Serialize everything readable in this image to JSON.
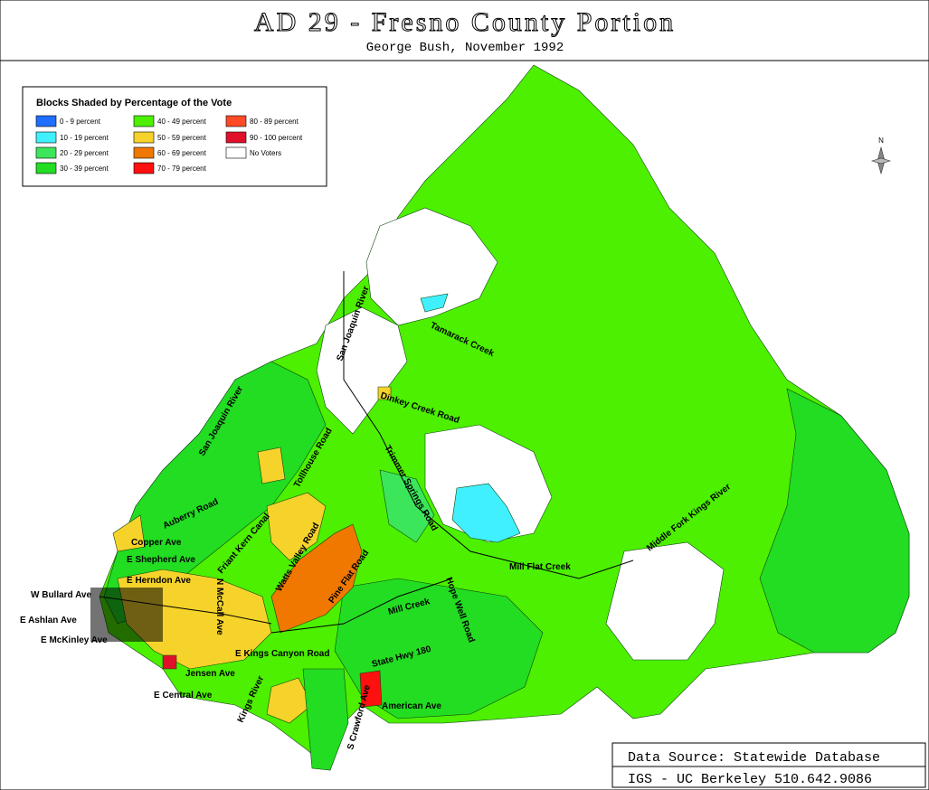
{
  "header": {
    "title": "AD 29 - Fresno County Portion",
    "subtitle": "George Bush, November 1992"
  },
  "legend": {
    "title": "Blocks Shaded by Percentage of the Vote",
    "items": [
      {
        "label": "0 - 9 percent",
        "color": "#1e6eff"
      },
      {
        "label": "10 - 19 percent",
        "color": "#40f0ff"
      },
      {
        "label": "20 - 29 percent",
        "color": "#3ce65a"
      },
      {
        "label": "30 - 39 percent",
        "color": "#22dd22"
      },
      {
        "label": "40 - 49 percent",
        "color": "#4cf000"
      },
      {
        "label": "50 - 59 percent",
        "color": "#f5d32a"
      },
      {
        "label": "60 - 69 percent",
        "color": "#f07800"
      },
      {
        "label": "70 - 79 percent",
        "color": "#ff1010"
      },
      {
        "label": "80 - 89 percent",
        "color": "#ff4a28"
      },
      {
        "label": "90 - 100 percent",
        "color": "#e0102a"
      },
      {
        "label": "No Voters",
        "color": "#ffffff"
      }
    ]
  },
  "map": {
    "north_label": "N",
    "labels": [
      "San Joaquin River",
      "Tamarack Creek",
      "Dinkey Creek Road",
      "San Joaquin River",
      "Tollhouse Road",
      "Trimmer Springs Road",
      "Auberry Road",
      "Copper Ave",
      "E Shepherd Ave",
      "Friant Kern Canal",
      "Watts Valley Road",
      "Pine Flat Road",
      "Mill Creek",
      "Hope Well Road",
      "Mill Flat Creek",
      "Middle Fork Kings River",
      "W Bullard Ave",
      "E Herndon Ave",
      "E Ashlan Ave",
      "E McKinley Ave",
      "E Kings Canyon Road",
      "Jensen Ave",
      "E Central Ave",
      "Kings River",
      "State Hwy 180",
      "American Ave",
      "S Crawford Ave",
      "N McCall Ave"
    ]
  },
  "footer": {
    "source": "Data Source: Statewide Database",
    "credit": "IGS - UC Berkeley 510.642.9086"
  }
}
